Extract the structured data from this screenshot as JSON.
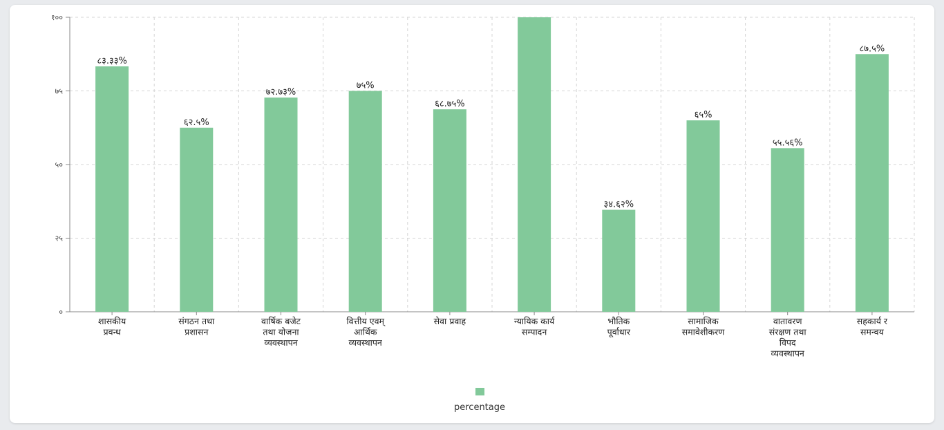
{
  "chart_data": {
    "type": "bar",
    "categories": [
      [
        "शासकीय",
        "प्रवन्ध"
      ],
      [
        "संगठन तथा",
        "प्रशासन"
      ],
      [
        "वार्षिक बजेट",
        "तथा योजना",
        "व्यवस्थापन"
      ],
      [
        "वित्तीय एवम्",
        "आर्थिक",
        "व्यवस्थापन"
      ],
      [
        "सेवा प्रवाह"
      ],
      [
        "न्यायिक कार्य",
        "सम्पादन"
      ],
      [
        "भौतिक",
        "पूर्वाधार"
      ],
      [
        "सामाजिक",
        "समावेशीकरण"
      ],
      [
        "वातावरण",
        "संरक्षण तथा",
        "विपद",
        "व्यवस्थापन"
      ],
      [
        "सहकार्य र",
        "समन्वय"
      ]
    ],
    "series": [
      {
        "name": "percentage",
        "values": [
          83.33,
          62.5,
          72.73,
          75,
          68.75,
          100,
          34.62,
          65,
          55.56,
          87.5
        ],
        "data_labels": [
          "८३.३३%",
          "६२.५%",
          "७२.७३%",
          "७५%",
          "६८.७५%",
          "",
          "३४.६२%",
          "६५%",
          "५५.५६%",
          "८७.५%"
        ]
      }
    ],
    "ylim": [
      0,
      100
    ],
    "yticks": [
      0,
      25,
      50,
      75,
      100
    ],
    "ytick_labels": [
      "०",
      "२५",
      "५०",
      "७५",
      "१००"
    ],
    "grid": true,
    "legend_position": "bottom-center",
    "bar_color": "#82c99a",
    "grid_color": "#d4d4d4",
    "axis_color": "#888888"
  },
  "legend": {
    "label": "percentage"
  }
}
